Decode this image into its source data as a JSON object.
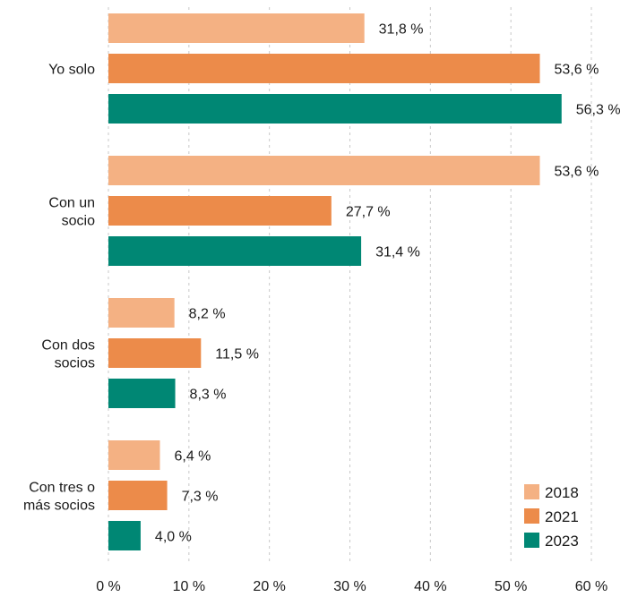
{
  "chart_data": {
    "type": "bar",
    "orientation": "horizontal",
    "categories": [
      [
        "Yo solo"
      ],
      [
        "Con un",
        "socio"
      ],
      [
        "Con dos",
        "socios"
      ],
      [
        "Con tres o",
        "más socios"
      ]
    ],
    "series": [
      {
        "name": "2018",
        "color": "#f4b183",
        "values": [
          31.8,
          53.6,
          8.2,
          6.4
        ],
        "labels": [
          "31,8 %",
          "53,6 %",
          "8,2 %",
          "6,4 %"
        ]
      },
      {
        "name": "2021",
        "color": "#ec8b4a",
        "values": [
          53.6,
          27.7,
          11.5,
          7.3
        ],
        "labels": [
          "53,6 %",
          "27,7 %",
          "11,5 %",
          "7,3 %"
        ]
      },
      {
        "name": "2023",
        "color": "#008774",
        "values": [
          56.3,
          31.4,
          8.3,
          4.0
        ],
        "labels": [
          "56,3 %",
          "31,4 %",
          "8,3 %",
          "4,0 %"
        ]
      }
    ],
    "xlim": [
      0,
      60
    ],
    "xticks": [
      0,
      10,
      20,
      30,
      40,
      50,
      60
    ],
    "xtick_labels": [
      "0 %",
      "10 %",
      "20 %",
      "30 %",
      "40 %",
      "50 %",
      "60 %"
    ],
    "grid": "vertical dashed",
    "legend_position": "bottom-right",
    "title": "",
    "xlabel": "",
    "ylabel": ""
  }
}
